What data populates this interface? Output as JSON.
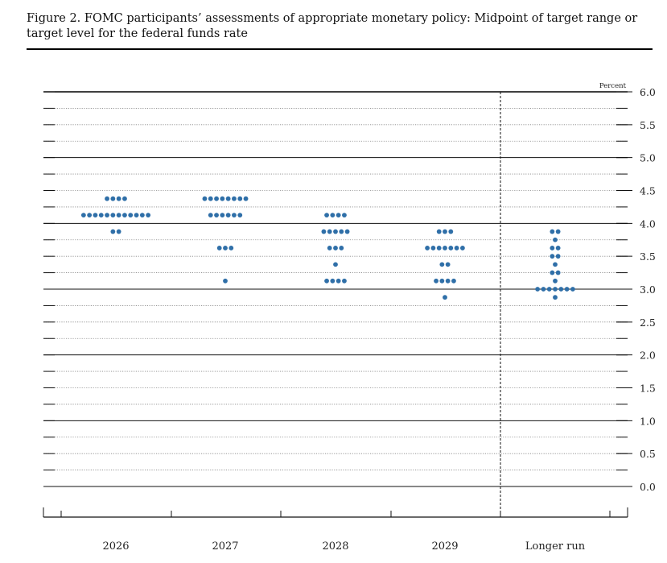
{
  "figure": {
    "title": "Figure 2. FOMC participants’ assessments of appropriate monetary policy: Midpoint of target range or target level for the federal funds rate"
  },
  "chart_data": {
    "type": "scatter",
    "subtype": "dot plot",
    "unit_label": "Percent",
    "categories": [
      "2026",
      "2027",
      "2028",
      "2029",
      "Longer run"
    ],
    "y_ticks": [
      "6.0",
      "5.5",
      "5.0",
      "4.5",
      "4.0",
      "3.5",
      "3.0",
      "2.5",
      "2.0",
      "1.5",
      "1.0",
      "0.5",
      "0.0"
    ],
    "ylim": [
      0,
      6
    ],
    "series": [
      {
        "category": "2026",
        "points": [
          {
            "y": 4.375,
            "count": 4
          },
          {
            "y": 4.125,
            "count": 12
          },
          {
            "y": 3.875,
            "count": 2
          }
        ]
      },
      {
        "category": "2027",
        "points": [
          {
            "y": 4.375,
            "count": 8
          },
          {
            "y": 4.125,
            "count": 6
          },
          {
            "y": 3.625,
            "count": 3
          },
          {
            "y": 3.125,
            "count": 1
          }
        ]
      },
      {
        "category": "2028",
        "points": [
          {
            "y": 4.125,
            "count": 4
          },
          {
            "y": 3.875,
            "count": 5
          },
          {
            "y": 3.625,
            "count": 3
          },
          {
            "y": 3.375,
            "count": 1
          },
          {
            "y": 3.125,
            "count": 4
          }
        ]
      },
      {
        "category": "2029",
        "points": [
          {
            "y": 3.875,
            "count": 3
          },
          {
            "y": 3.625,
            "count": 7
          },
          {
            "y": 3.375,
            "count": 2
          },
          {
            "y": 3.125,
            "count": 4
          },
          {
            "y": 2.875,
            "count": 1
          }
        ]
      },
      {
        "category": "Longer run",
        "points": [
          {
            "y": 3.875,
            "count": 2
          },
          {
            "y": 3.75,
            "count": 1
          },
          {
            "y": 3.625,
            "count": 2
          },
          {
            "y": 3.5,
            "count": 2
          },
          {
            "y": 3.375,
            "count": 1
          },
          {
            "y": 3.25,
            "count": 2
          },
          {
            "y": 3.125,
            "count": 1
          },
          {
            "y": 3.0,
            "count": 7
          },
          {
            "y": 2.875,
            "count": 1
          }
        ]
      }
    ],
    "grid": true,
    "dot_color": "#2f6fa8"
  }
}
